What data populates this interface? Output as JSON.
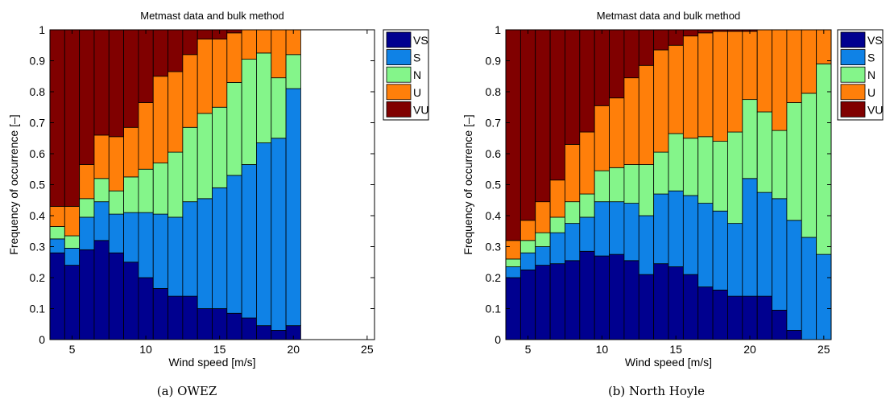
{
  "colors": {
    "VS": "#00008f",
    "S": "#0f82e6",
    "N": "#84f58a",
    "U": "#ff7f0a",
    "VU": "#800000"
  },
  "legend": [
    "VS",
    "S",
    "N",
    "U",
    "VU"
  ],
  "chart_data": [
    {
      "type": "bar",
      "stacked": true,
      "title": "Metmast data and bulk method",
      "xlabel": "Wind speed [m/s]",
      "ylabel": "Frequency of occurrence [–]",
      "caption": "(a) OWEZ",
      "xlim": [
        3.5,
        25.5
      ],
      "ylim": [
        0,
        1
      ],
      "xticks": [
        "5",
        "10",
        "15",
        "20",
        "25"
      ],
      "yticks": [
        "0",
        "0.1",
        "0.2",
        "0.3",
        "0.4",
        "0.5",
        "0.6",
        "0.7",
        "0.8",
        "0.9",
        "1"
      ],
      "legend_position": "top-right, outside axes",
      "x": [
        4,
        5,
        6,
        7,
        8,
        9,
        10,
        11,
        12,
        13,
        14,
        15,
        16,
        17,
        18,
        19,
        20
      ],
      "series": [
        {
          "name": "VS",
          "values": [
            0.28,
            0.24,
            0.29,
            0.32,
            0.28,
            0.25,
            0.2,
            0.165,
            0.14,
            0.14,
            0.1,
            0.1,
            0.085,
            0.07,
            0.045,
            0.03,
            0.045
          ]
        },
        {
          "name": "S",
          "values": [
            0.045,
            0.055,
            0.105,
            0.125,
            0.125,
            0.16,
            0.21,
            0.24,
            0.255,
            0.305,
            0.355,
            0.39,
            0.445,
            0.495,
            0.59,
            0.62,
            0.765
          ]
        },
        {
          "name": "N",
          "values": [
            0.04,
            0.04,
            0.06,
            0.075,
            0.075,
            0.115,
            0.14,
            0.165,
            0.21,
            0.24,
            0.275,
            0.26,
            0.3,
            0.34,
            0.29,
            0.195,
            0.11
          ]
        },
        {
          "name": "U",
          "values": [
            0.065,
            0.095,
            0.11,
            0.14,
            0.175,
            0.16,
            0.215,
            0.28,
            0.26,
            0.235,
            0.24,
            0.22,
            0.16,
            0.095,
            0.075,
            0.155,
            0.08
          ]
        },
        {
          "name": "VU",
          "values": [
            0.57,
            0.57,
            0.435,
            0.34,
            0.345,
            0.315,
            0.235,
            0.15,
            0.135,
            0.08,
            0.03,
            0.03,
            0.01,
            0.0,
            0.0,
            0.0,
            0.0
          ]
        }
      ]
    },
    {
      "type": "bar",
      "stacked": true,
      "title": "Metmast data and bulk method",
      "xlabel": "Wind speed [m/s]",
      "ylabel": "Frequency of occurrence [–]",
      "caption": "(b) North Hoyle",
      "xlim": [
        3.5,
        25.5
      ],
      "ylim": [
        0,
        1
      ],
      "xticks": [
        "5",
        "10",
        "15",
        "20",
        "25"
      ],
      "yticks": [
        "0",
        "0.1",
        "0.2",
        "0.3",
        "0.4",
        "0.5",
        "0.6",
        "0.7",
        "0.8",
        "0.9",
        "1"
      ],
      "legend_position": "top-right, outside axes",
      "x": [
        4,
        5,
        6,
        7,
        8,
        9,
        10,
        11,
        12,
        13,
        14,
        15,
        16,
        17,
        18,
        19,
        20,
        21,
        22,
        23,
        24,
        25
      ],
      "series": [
        {
          "name": "VS",
          "values": [
            0.2,
            0.225,
            0.24,
            0.245,
            0.255,
            0.285,
            0.27,
            0.275,
            0.255,
            0.21,
            0.245,
            0.235,
            0.21,
            0.17,
            0.16,
            0.14,
            0.14,
            0.14,
            0.095,
            0.03,
            0.0,
            0.0
          ]
        },
        {
          "name": "S",
          "values": [
            0.035,
            0.055,
            0.06,
            0.1,
            0.12,
            0.11,
            0.175,
            0.17,
            0.185,
            0.19,
            0.225,
            0.245,
            0.255,
            0.27,
            0.255,
            0.235,
            0.38,
            0.335,
            0.36,
            0.355,
            0.33,
            0.275
          ]
        },
        {
          "name": "N",
          "values": [
            0.025,
            0.04,
            0.045,
            0.05,
            0.07,
            0.075,
            0.1,
            0.11,
            0.125,
            0.165,
            0.135,
            0.185,
            0.185,
            0.215,
            0.225,
            0.295,
            0.255,
            0.26,
            0.22,
            0.38,
            0.465,
            0.615
          ]
        },
        {
          "name": "U",
          "values": [
            0.06,
            0.065,
            0.1,
            0.12,
            0.185,
            0.2,
            0.21,
            0.225,
            0.28,
            0.32,
            0.33,
            0.285,
            0.33,
            0.335,
            0.355,
            0.325,
            0.22,
            0.265,
            0.325,
            0.235,
            0.205,
            0.11
          ]
        },
        {
          "name": "VU",
          "values": [
            0.68,
            0.615,
            0.555,
            0.485,
            0.37,
            0.33,
            0.245,
            0.22,
            0.155,
            0.115,
            0.065,
            0.05,
            0.02,
            0.01,
            0.005,
            0.005,
            0.005,
            0.0,
            0.0,
            0.0,
            0.0,
            0.0
          ]
        }
      ]
    }
  ]
}
